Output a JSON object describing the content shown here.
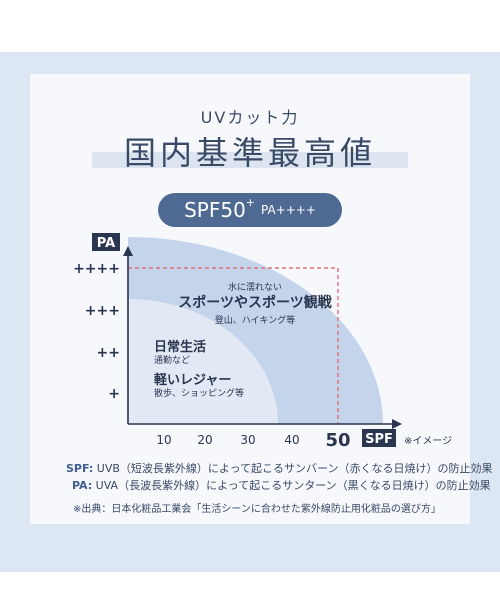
{
  "header": {
    "subtitle": "UVカット力",
    "title": "国内基準最高値"
  },
  "badge": {
    "main": "SPF50",
    "sup": "+",
    "sub": "PA++++"
  },
  "chart_data": {
    "type": "area",
    "x_axis": {
      "label": "SPF",
      "ticks": [
        10,
        20,
        30,
        40,
        50
      ],
      "max_tick_emphasized": 50
    },
    "y_axis": {
      "label": "PA",
      "ticks": [
        "+",
        "++",
        "+++",
        "++++"
      ]
    },
    "note": "※イメージ",
    "regions": [
      {
        "id": "large",
        "title": "スポーツやスポーツ観戦",
        "pre": "水に濡れない",
        "desc": "登山、ハイキング等",
        "color": "#c3d4eb"
      },
      {
        "id": "small",
        "title": "日常生活",
        "desc": "通勤など",
        "color": "#e2e9f4"
      },
      {
        "id": "small2",
        "title": "軽いレジャー",
        "desc": "散歩、ショッピング等"
      }
    ],
    "max_point": {
      "spf": 50,
      "pa": "++++"
    },
    "colors": {
      "axis": "#2a3550",
      "dashed": "#e0707a",
      "text": "#2a3550"
    }
  },
  "legend_notes": {
    "spf_label": "SPF:",
    "spf_text": "UVB（短波長紫外線）によって起こるサンバーン（赤くなる日焼け）の防止効果",
    "pa_label": "PA:",
    "pa_text": "UVA（長波長紫外線）によって起こるサンターン（黒くなる日焼け）の防止効果"
  },
  "source": "※出典：日本化粧品工業会「生活シーンに合わせた紫外線防止用化粧品の選び方」"
}
